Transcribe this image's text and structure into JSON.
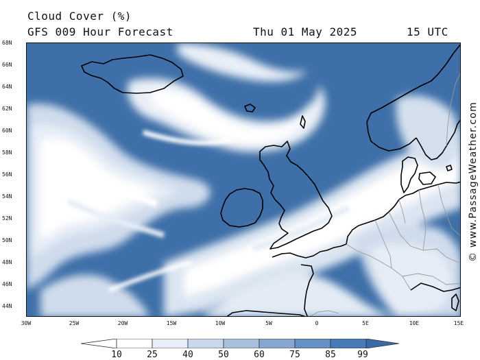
{
  "title": "Cloud Cover (%)",
  "subtitle": "GFS 009 Hour Forecast",
  "valid_date": "Thu 01 May 2025",
  "valid_time": "15 UTC",
  "credit": "© www.PassageWeather.com",
  "lat_labels": [
    "68N",
    "66N",
    "64N",
    "62N",
    "60N",
    "58N",
    "56N",
    "54N",
    "52N",
    "50N",
    "48N",
    "46N",
    "44N"
  ],
  "lon_labels": [
    "30W",
    "25W",
    "20W",
    "15W",
    "10W",
    "5W",
    "0",
    "5E",
    "10E",
    "15E"
  ],
  "legend": {
    "levels": [
      "10",
      "25",
      "40",
      "50",
      "60",
      "75",
      "85",
      "99"
    ],
    "colors": [
      "#ffffff",
      "#ffffff",
      "#e8eef7",
      "#c9d7ea",
      "#a9bfde",
      "#87a7d1",
      "#6690c4",
      "#477ab7",
      "#3a6aa6"
    ]
  },
  "colors": {
    "ocean_cloud": "#3e6fa8",
    "clear": "#ffffff",
    "coast": "#000000",
    "border": "#9a9a9a"
  }
}
